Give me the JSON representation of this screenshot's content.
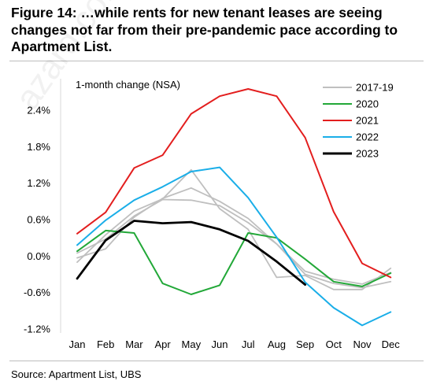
{
  "figure": {
    "title_lines": [
      "Figure 14: …while rents for new tenant leases are seeing",
      "changes not far from their pre-pandemic pace according to",
      "Apartment List."
    ],
    "source": "Source: Apartment List, UBS",
    "watermark": "azard.com"
  },
  "chart_data": {
    "type": "line",
    "title": "",
    "xlabel": "",
    "ylabel": "",
    "annotation": "1-month change (NSA)",
    "categories": [
      "Jan",
      "Feb",
      "Mar",
      "Apr",
      "May",
      "Jun",
      "Jul",
      "Aug",
      "Sep",
      "Oct",
      "Nov",
      "Dec"
    ],
    "ylim": [
      -1.2,
      2.4
    ],
    "yticks": [
      2.4,
      1.8,
      1.2,
      0.6,
      0.0,
      -0.6,
      -1.2
    ],
    "ytick_labels": [
      "2.4%",
      "1.8%",
      "1.2%",
      "0.6%",
      "0.0%",
      "-0.6%",
      "-1.2%"
    ],
    "grid": false,
    "legend_position": "top-right",
    "legend": [
      {
        "label": "2017-19",
        "color": "#bfbfbf"
      },
      {
        "label": "2020",
        "color": "#22a838"
      },
      {
        "label": "2021",
        "color": "#e31e1e"
      },
      {
        "label": "2022",
        "color": "#1aaee8"
      },
      {
        "label": "2023",
        "color": "#000000"
      }
    ],
    "series": [
      {
        "name": "2017-19",
        "color": "#bfbfbf",
        "width": 1.8,
        "values": [
          -0.1,
          0.35,
          0.74,
          0.94,
          1.42,
          0.78,
          0.44,
          -0.35,
          -0.32,
          -0.55,
          -0.55,
          -0.2
        ]
      },
      {
        "name": "2017-19",
        "color": "#bfbfbf",
        "width": 1.8,
        "values": [
          0.05,
          0.28,
          0.66,
          0.93,
          0.92,
          0.83,
          0.55,
          0.2,
          -0.3,
          -0.45,
          -0.52,
          -0.42
        ]
      },
      {
        "name": "2017-19",
        "color": "#bfbfbf",
        "width": 1.8,
        "values": [
          -0.03,
          0.12,
          0.64,
          0.95,
          1.12,
          0.9,
          0.62,
          0.2,
          -0.25,
          -0.38,
          -0.46,
          -0.27
        ]
      },
      {
        "name": "2020",
        "color": "#22a838",
        "width": 2,
        "values": [
          0.08,
          0.42,
          0.38,
          -0.45,
          -0.63,
          -0.48,
          0.38,
          0.3,
          -0.05,
          -0.42,
          -0.5,
          -0.28
        ]
      },
      {
        "name": "2021",
        "color": "#e31e1e",
        "width": 2,
        "values": [
          0.37,
          0.72,
          1.45,
          1.66,
          2.34,
          2.63,
          2.75,
          2.63,
          1.95,
          0.73,
          -0.12,
          -0.35
        ]
      },
      {
        "name": "2022",
        "color": "#1aaee8",
        "width": 2,
        "values": [
          0.18,
          0.59,
          0.92,
          1.14,
          1.39,
          1.46,
          0.96,
          0.31,
          -0.43,
          -0.85,
          -1.14,
          -0.92
        ]
      },
      {
        "name": "2023",
        "color": "#000000",
        "width": 2.8,
        "values": [
          -0.37,
          0.26,
          0.58,
          0.54,
          0.56,
          0.44,
          0.25,
          -0.09,
          -0.47,
          null,
          null,
          null
        ]
      }
    ]
  }
}
